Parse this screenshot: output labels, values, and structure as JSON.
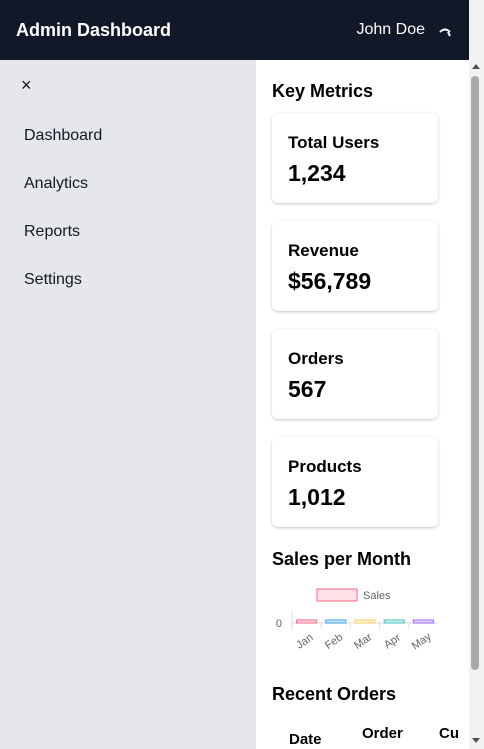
{
  "header": {
    "title": "Admin Dashboard",
    "user_name": "John Doe",
    "user_icon": "logout-icon"
  },
  "sidebar": {
    "close_label": "×",
    "items": [
      {
        "label": "Dashboard"
      },
      {
        "label": "Analytics"
      },
      {
        "label": "Reports"
      },
      {
        "label": "Settings"
      }
    ]
  },
  "main": {
    "metrics_title": "Key Metrics",
    "cards": [
      {
        "label": "Total Users",
        "value": "1,234"
      },
      {
        "label": "Revenue",
        "value": "$56,789"
      },
      {
        "label": "Orders",
        "value": "567"
      },
      {
        "label": "Products",
        "value": "1,012"
      }
    ],
    "sales_title": "Sales per Month",
    "recent_orders_title": "Recent Orders",
    "table_headers": [
      "Date",
      "Order",
      "Cu"
    ]
  },
  "chart_data": {
    "type": "bar",
    "categories": [
      "Jan",
      "Feb",
      "Mar",
      "Apr",
      "May"
    ],
    "series": [
      {
        "name": "Sales",
        "values": [
          0,
          0,
          0,
          0,
          0
        ],
        "colors": [
          "#ff6384",
          "#36a2eb",
          "#ffce56",
          "#4bc0c0",
          "#9966ff"
        ]
      }
    ],
    "ytick": "0",
    "legend_position": "top",
    "legend_color": "#ff6384",
    "grid": true
  }
}
